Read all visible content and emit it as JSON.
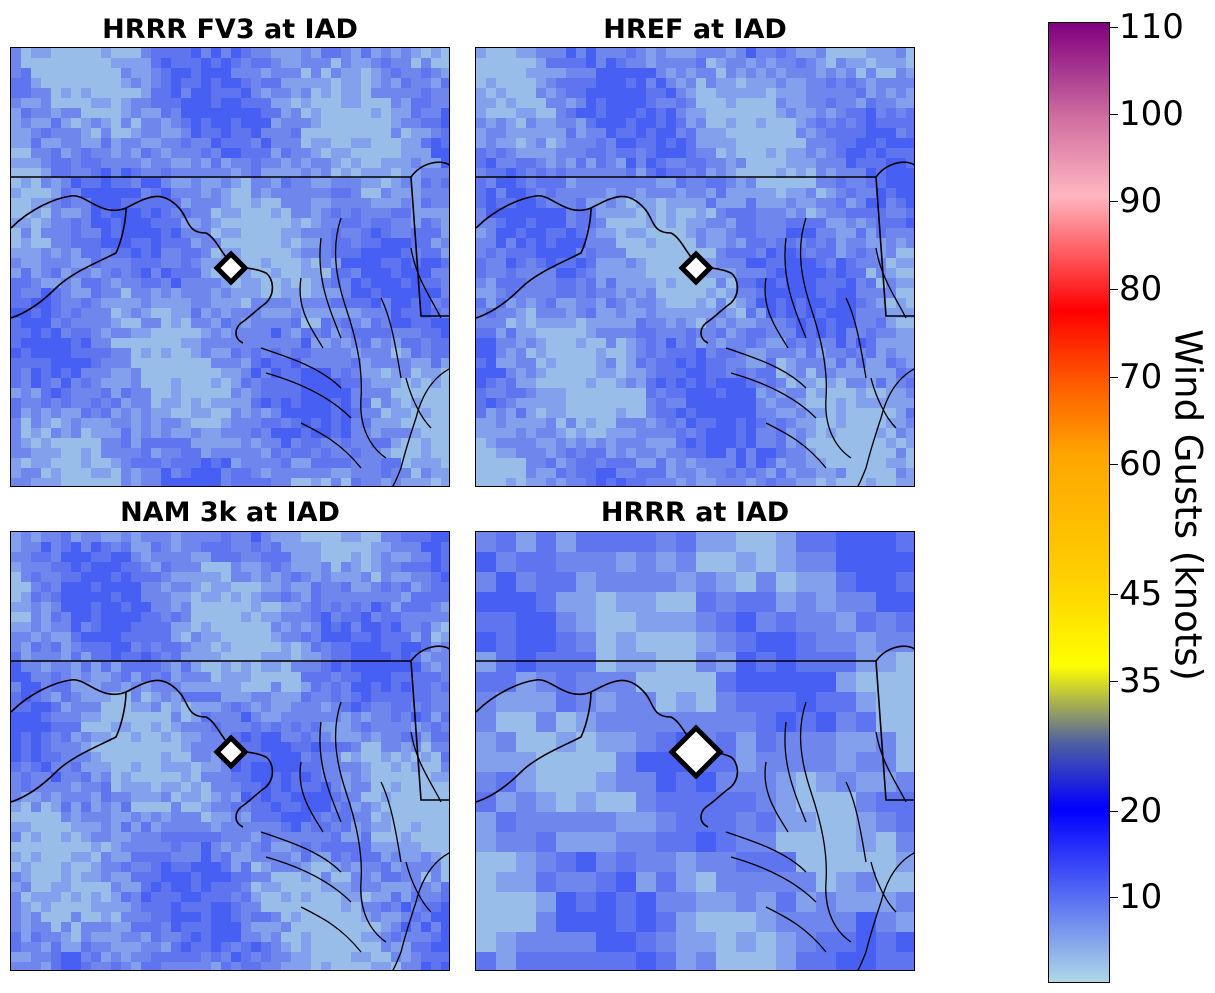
{
  "panels": [
    {
      "title": "HRRR FV3 at IAD",
      "marker": "small"
    },
    {
      "title": "HREF at IAD",
      "marker": "small"
    },
    {
      "title": "NAM 3k at IAD",
      "marker": "small"
    },
    {
      "title": "HRRR at IAD",
      "marker": "large"
    }
  ],
  "colorbar": {
    "label": "Wind Gusts (knots)",
    "ticks": [
      "10",
      "20",
      "35",
      "45",
      "60",
      "70",
      "80",
      "90",
      "100",
      "110"
    ],
    "colors": {
      "low": "#add8e6",
      "mid_blue": "#0000ff",
      "yellow": "#ffff00",
      "orange": "#ffa500",
      "red": "#ff0000",
      "pink": "#ffb6c1",
      "purple": "#800080"
    }
  },
  "station": "IAD"
}
